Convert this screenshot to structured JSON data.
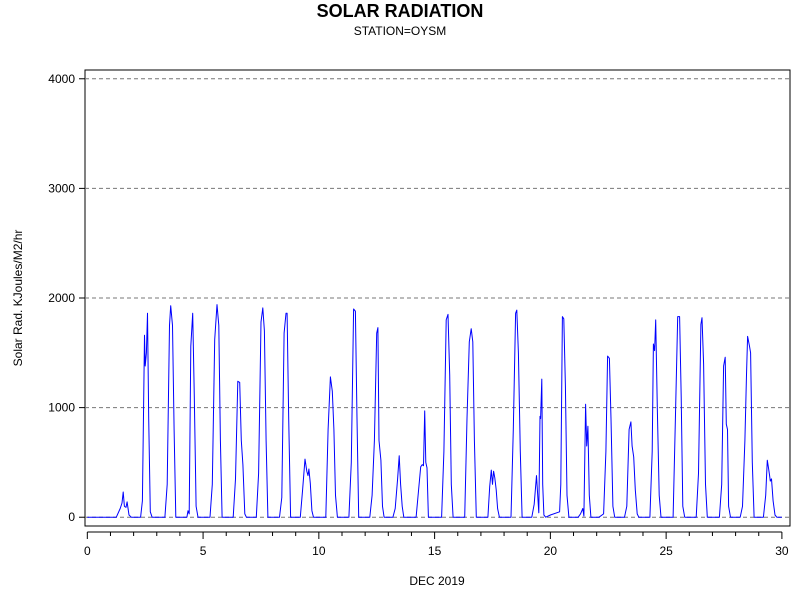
{
  "chart_data": {
    "type": "line",
    "title": "SOLAR RADIATION",
    "subtitle": "STATION=OYSM",
    "xlabel": "DEC 2019",
    "ylabel": "Solar Rad. KJoules/M2/hr",
    "xlim": [
      -0.1,
      30.35
    ],
    "ylim": [
      -80,
      4080
    ],
    "x_ticks": [
      0,
      5,
      10,
      15,
      20,
      25,
      30
    ],
    "y_ticks": [
      0,
      1000,
      2000,
      3000,
      4000
    ],
    "grid": "horizontal dashed",
    "line_color": "#0000ff",
    "series": [
      {
        "points": [
          [
            0.0,
            0
          ],
          [
            1.25,
            0
          ],
          [
            1.42,
            80
          ],
          [
            1.5,
            130
          ],
          [
            1.55,
            230
          ],
          [
            1.6,
            100
          ],
          [
            1.67,
            90
          ],
          [
            1.72,
            140
          ],
          [
            1.8,
            20
          ],
          [
            1.9,
            0
          ],
          [
            2.3,
            0
          ],
          [
            2.38,
            150
          ],
          [
            2.47,
            1660
          ],
          [
            2.5,
            1380
          ],
          [
            2.55,
            1500
          ],
          [
            2.6,
            1860
          ],
          [
            2.65,
            900
          ],
          [
            2.72,
            50
          ],
          [
            2.8,
            0
          ],
          [
            3.35,
            0
          ],
          [
            3.45,
            300
          ],
          [
            3.55,
            1750
          ],
          [
            3.6,
            1930
          ],
          [
            3.68,
            1750
          ],
          [
            3.75,
            800
          ],
          [
            3.82,
            0
          ],
          [
            4.3,
            0
          ],
          [
            4.35,
            60
          ],
          [
            4.4,
            30
          ],
          [
            4.47,
            1560
          ],
          [
            4.55,
            1860
          ],
          [
            4.62,
            1100
          ],
          [
            4.7,
            100
          ],
          [
            4.78,
            0
          ],
          [
            5.3,
            0
          ],
          [
            5.4,
            300
          ],
          [
            5.5,
            1620
          ],
          [
            5.6,
            1940
          ],
          [
            5.68,
            1750
          ],
          [
            5.75,
            700
          ],
          [
            5.82,
            0
          ],
          [
            6.3,
            0
          ],
          [
            6.4,
            350
          ],
          [
            6.5,
            1240
          ],
          [
            6.58,
            1230
          ],
          [
            6.65,
            700
          ],
          [
            6.72,
            480
          ],
          [
            6.8,
            30
          ],
          [
            6.87,
            0
          ],
          [
            7.3,
            0
          ],
          [
            7.4,
            400
          ],
          [
            7.5,
            1780
          ],
          [
            7.58,
            1910
          ],
          [
            7.65,
            1700
          ],
          [
            7.72,
            700
          ],
          [
            7.8,
            0
          ],
          [
            8.3,
            0
          ],
          [
            8.4,
            180
          ],
          [
            8.5,
            1680
          ],
          [
            8.58,
            1860
          ],
          [
            8.63,
            1860
          ],
          [
            8.7,
            900
          ],
          [
            8.78,
            0
          ],
          [
            9.2,
            0
          ],
          [
            9.3,
            250
          ],
          [
            9.4,
            530
          ],
          [
            9.48,
            420
          ],
          [
            9.53,
            380
          ],
          [
            9.57,
            440
          ],
          [
            9.63,
            310
          ],
          [
            9.7,
            60
          ],
          [
            9.77,
            0
          ],
          [
            10.3,
            0
          ],
          [
            10.4,
            800
          ],
          [
            10.5,
            1280
          ],
          [
            10.58,
            1150
          ],
          [
            10.65,
            800
          ],
          [
            10.72,
            200
          ],
          [
            10.8,
            0
          ],
          [
            11.3,
            0
          ],
          [
            11.4,
            500
          ],
          [
            11.5,
            1900
          ],
          [
            11.58,
            1880
          ],
          [
            11.65,
            900
          ],
          [
            11.72,
            0
          ],
          [
            12.2,
            0
          ],
          [
            12.3,
            200
          ],
          [
            12.4,
            700
          ],
          [
            12.5,
            1680
          ],
          [
            12.55,
            1730
          ],
          [
            12.6,
            700
          ],
          [
            12.68,
            520
          ],
          [
            12.75,
            100
          ],
          [
            12.82,
            0
          ],
          [
            13.2,
            0
          ],
          [
            13.3,
            80
          ],
          [
            13.4,
            350
          ],
          [
            13.47,
            560
          ],
          [
            13.53,
            300
          ],
          [
            13.6,
            100
          ],
          [
            13.67,
            0
          ],
          [
            14.2,
            0
          ],
          [
            14.3,
            230
          ],
          [
            14.4,
            460
          ],
          [
            14.47,
            480
          ],
          [
            14.52,
            470
          ],
          [
            14.57,
            970
          ],
          [
            14.62,
            500
          ],
          [
            14.67,
            450
          ],
          [
            14.73,
            0
          ],
          [
            15.3,
            0
          ],
          [
            15.4,
            600
          ],
          [
            15.5,
            1800
          ],
          [
            15.58,
            1850
          ],
          [
            15.65,
            1300
          ],
          [
            15.72,
            300
          ],
          [
            15.8,
            0
          ],
          [
            16.3,
            0
          ],
          [
            16.4,
            900
          ],
          [
            16.5,
            1600
          ],
          [
            16.58,
            1720
          ],
          [
            16.65,
            1600
          ],
          [
            16.72,
            700
          ],
          [
            16.8,
            0
          ],
          [
            17.3,
            0
          ],
          [
            17.38,
            280
          ],
          [
            17.45,
            430
          ],
          [
            17.5,
            300
          ],
          [
            17.55,
            420
          ],
          [
            17.6,
            360
          ],
          [
            17.66,
            250
          ],
          [
            17.72,
            80
          ],
          [
            17.8,
            0
          ],
          [
            18.3,
            0
          ],
          [
            18.4,
            800
          ],
          [
            18.5,
            1860
          ],
          [
            18.55,
            1890
          ],
          [
            18.62,
            1500
          ],
          [
            18.7,
            600
          ],
          [
            18.78,
            0
          ],
          [
            19.2,
            0
          ],
          [
            19.3,
            120
          ],
          [
            19.4,
            380
          ],
          [
            19.5,
            40
          ],
          [
            19.55,
            920
          ],
          [
            19.58,
            900
          ],
          [
            19.63,
            1260
          ],
          [
            19.67,
            300
          ],
          [
            19.72,
            20
          ],
          [
            19.8,
            0
          ],
          [
            20.0,
            20
          ],
          [
            20.4,
            50
          ],
          [
            20.45,
            300
          ],
          [
            20.52,
            1830
          ],
          [
            20.58,
            1810
          ],
          [
            20.65,
            1200
          ],
          [
            20.72,
            200
          ],
          [
            20.8,
            0
          ],
          [
            21.2,
            0
          ],
          [
            21.3,
            30
          ],
          [
            21.4,
            80
          ],
          [
            21.45,
            10
          ],
          [
            21.52,
            1030
          ],
          [
            21.57,
            650
          ],
          [
            21.62,
            830
          ],
          [
            21.68,
            200
          ],
          [
            21.75,
            0
          ],
          [
            22.1,
            0
          ],
          [
            22.3,
            30
          ],
          [
            22.4,
            600
          ],
          [
            22.47,
            1470
          ],
          [
            22.55,
            1450
          ],
          [
            22.62,
            900
          ],
          [
            22.7,
            100
          ],
          [
            22.78,
            0
          ],
          [
            23.2,
            0
          ],
          [
            23.3,
            100
          ],
          [
            23.4,
            800
          ],
          [
            23.48,
            870
          ],
          [
            23.53,
            650
          ],
          [
            23.6,
            550
          ],
          [
            23.67,
            250
          ],
          [
            23.75,
            30
          ],
          [
            23.82,
            0
          ],
          [
            24.3,
            0
          ],
          [
            24.4,
            600
          ],
          [
            24.45,
            1580
          ],
          [
            24.5,
            1520
          ],
          [
            24.55,
            1800
          ],
          [
            24.62,
            1000
          ],
          [
            24.7,
            200
          ],
          [
            24.78,
            0
          ],
          [
            25.3,
            0
          ],
          [
            25.4,
            900
          ],
          [
            25.5,
            1830
          ],
          [
            25.58,
            1830
          ],
          [
            25.65,
            1100
          ],
          [
            25.72,
            100
          ],
          [
            25.8,
            0
          ],
          [
            26.3,
            0
          ],
          [
            26.4,
            400
          ],
          [
            26.5,
            1760
          ],
          [
            26.55,
            1820
          ],
          [
            26.62,
            1400
          ],
          [
            26.7,
            300
          ],
          [
            26.78,
            0
          ],
          [
            27.3,
            0
          ],
          [
            27.4,
            300
          ],
          [
            27.48,
            1380
          ],
          [
            27.55,
            1460
          ],
          [
            27.6,
            850
          ],
          [
            27.65,
            800
          ],
          [
            27.7,
            100
          ],
          [
            27.78,
            0
          ],
          [
            28.2,
            0
          ],
          [
            28.3,
            100
          ],
          [
            28.4,
            700
          ],
          [
            28.47,
            1300
          ],
          [
            28.52,
            1650
          ],
          [
            28.6,
            1560
          ],
          [
            28.65,
            1500
          ],
          [
            28.72,
            500
          ],
          [
            28.8,
            0
          ],
          [
            29.2,
            0
          ],
          [
            29.3,
            200
          ],
          [
            29.37,
            520
          ],
          [
            29.42,
            450
          ],
          [
            29.47,
            380
          ],
          [
            29.5,
            330
          ],
          [
            29.55,
            350
          ],
          [
            29.62,
            150
          ],
          [
            29.7,
            20
          ],
          [
            29.78,
            0
          ],
          [
            30.0,
            0
          ]
        ]
      }
    ]
  }
}
